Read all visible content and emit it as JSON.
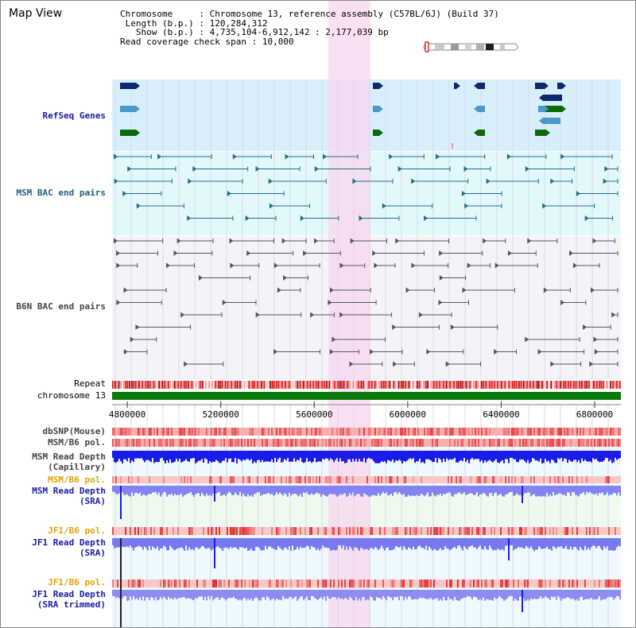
{
  "title": "Map View",
  "info": {
    "chromosome_label": "Chromosome",
    "chromosome_value": "Chromosome 13, reference assembly (C57BL/6J) (Build 37)",
    "length_label": "Length (b.p.)",
    "length_value": "120,284,312",
    "show_label": "Show (b.p.)",
    "show_value": "4,735,104-6,912,142 : 2,177,039 bp",
    "coverage_label": "Read coverage check span",
    "coverage_value": "10,000"
  },
  "tracks": {
    "refseq": "RefSeq Genes",
    "msm_bac": "MSM BAC end pairs",
    "b6n_bac": "B6N BAC end pairs",
    "repeat": "Repeat",
    "chromosome": "chromosome 13",
    "dbsnp": "dbSNP(Mouse)",
    "msm_b6_pol": "MSM/B6 pol.",
    "msm_depth_cap_1": "MSM Read Depth",
    "msm_depth_cap_2": "(Capillary)",
    "msm_b6_pol_2": "MSM/B6 pol.",
    "msm_depth_sra_1": "MSM Read Depth",
    "msm_depth_sra_2": "(SRA)",
    "jf1_b6_pol": "JF1/B6 pol.",
    "jf1_depth_sra_1": "JF1 Read Depth",
    "jf1_depth_sra_2": "(SRA)",
    "jf1_b6_pol_2": "JF1/B6 pol.",
    "jf1_depth_trim_1": "JF1 Read Depth",
    "jf1_depth_trim_2": "(SRA trimmed)"
  },
  "axis": {
    "ticks": [
      {
        "label": "4800000",
        "value": 4800000
      },
      {
        "label": "5200000",
        "value": 5200000
      },
      {
        "label": "5600000",
        "value": 5600000
      },
      {
        "label": "6000000",
        "value": 6000000
      },
      {
        "label": "6400000",
        "value": 6400000
      },
      {
        "label": "6800000",
        "value": 6800000
      }
    ],
    "start": 4735104,
    "end": 6912142
  },
  "highlight_range": [
    5660000,
    5840000
  ],
  "colors": {
    "refseq_bg": "#d8effb",
    "msm_bg": "#e2f8fb",
    "b6n_bg": "#f4f4f8",
    "highlight": "#f8d6f0",
    "chromosome_bar": "#0a7a0a",
    "teal": "#1f6f8f",
    "navy": "#0a2a6a",
    "gene_light": "#4a9ac8",
    "gene_green": "#0a6a0a",
    "depth_blue": "#1c1ce8",
    "depth_light": "#7070f0",
    "pol_red": "#f07070"
  }
}
